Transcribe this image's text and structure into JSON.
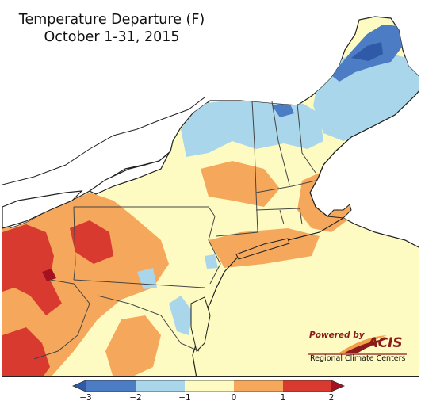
{
  "map": {
    "title": "Temperature Departure (F)",
    "subtitle": "October 1-31, 2015",
    "region": "Northeast United States"
  },
  "logo": {
    "powered_by": "Powered by",
    "name": "ACIS",
    "subtext": "Regional Climate Centers",
    "colors": {
      "text": "#8b1a1a",
      "swoosh_dark": "#8b1a1a",
      "swoosh_light": "#f4a04a"
    }
  },
  "legend": {
    "tick_labels": [
      "−3",
      "−2",
      "−1",
      "0",
      "1",
      "2"
    ],
    "bins": [
      {
        "range": "below -3",
        "color": "#2f5aa8"
      },
      {
        "range": "-3 to -2",
        "color": "#4b7cc4"
      },
      {
        "range": "-2 to -1",
        "color": "#a9d6ea"
      },
      {
        "range": "-1 to 0",
        "color": "#fdfbc2"
      },
      {
        "range": "0 to 1",
        "color": "#f5a85c"
      },
      {
        "range": "1 to 2",
        "color": "#d93a30"
      },
      {
        "range": "above 2",
        "color": "#a3121e"
      }
    ]
  },
  "colors": {
    "land_default": "#fdfbc2",
    "water": "#ffffff",
    "state_border": "#444444",
    "county_border": "#8a8a6a"
  }
}
